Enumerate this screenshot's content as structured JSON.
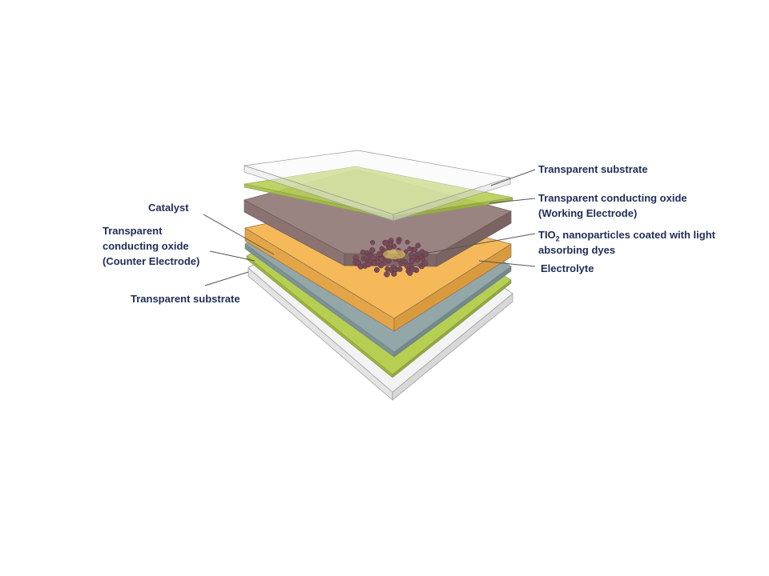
{
  "labels": {
    "right": {
      "top_substrate": "Transparent substrate",
      "working_electrode_line1": "Transparent conducting oxide",
      "working_electrode_line2": "(Working Electrode)",
      "tio2_prefix": "TIO",
      "tio2_subscript": "2",
      "tio2_line1_rest": " nanoparticles coated with light",
      "tio2_line2": "absorbing dyes",
      "electrolyte": "Electrolyte"
    },
    "left": {
      "catalyst": "Catalyst",
      "counter_electrode_line1": "Transparent",
      "counter_electrode_line2": "conducting oxide",
      "counter_electrode_line3": "(Counter Electrode)",
      "bottom_substrate": "Transparent substrate"
    }
  },
  "colors": {
    "label_text": "#1f2d56",
    "leader_line": "#555555",
    "substrate": "#f3f3f3",
    "conducting_oxide": "#b6cf52",
    "tio2_layer": "#9a8482",
    "electrolyte": "#f5b95a",
    "catalyst": "#93a7a9",
    "nanoparticle": "#7a4a5a"
  },
  "layers_top_to_bottom": [
    "Transparent substrate",
    "Transparent conducting oxide (Working Electrode)",
    "TIO2 nanoparticles coated with light absorbing dyes",
    "Electrolyte",
    "Catalyst",
    "Transparent conducting oxide (Counter Electrode)",
    "Transparent substrate"
  ]
}
